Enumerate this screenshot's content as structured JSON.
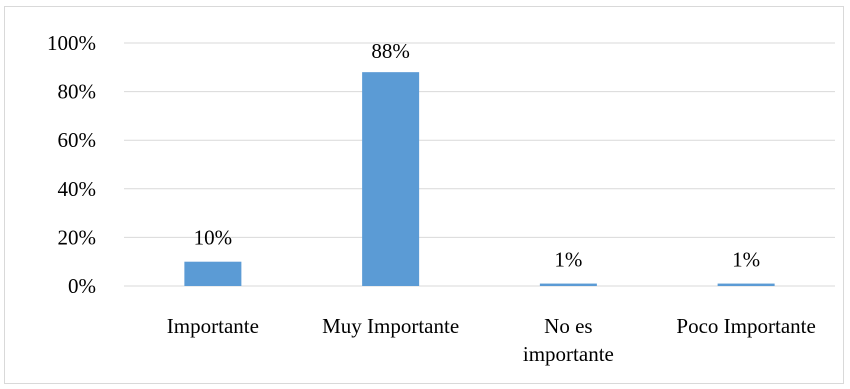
{
  "chart_data": {
    "type": "bar",
    "categories": [
      "Importante",
      "Muy Importante",
      "No es importante",
      "Poco Importante"
    ],
    "category_lines": [
      [
        "Importante"
      ],
      [
        "Muy Importante"
      ],
      [
        "No es",
        "importante"
      ],
      [
        "Poco Importante"
      ]
    ],
    "values": [
      10,
      88,
      1,
      1
    ],
    "data_labels": [
      "10%",
      "88%",
      "1%",
      "1%"
    ],
    "y_ticks": [
      "0%",
      "20%",
      "40%",
      "60%",
      "80%",
      "100%"
    ],
    "ylim": [
      0,
      100
    ],
    "grid": true,
    "bar_color": "#5b9bd5",
    "grid_color": "#d9d9d9"
  }
}
